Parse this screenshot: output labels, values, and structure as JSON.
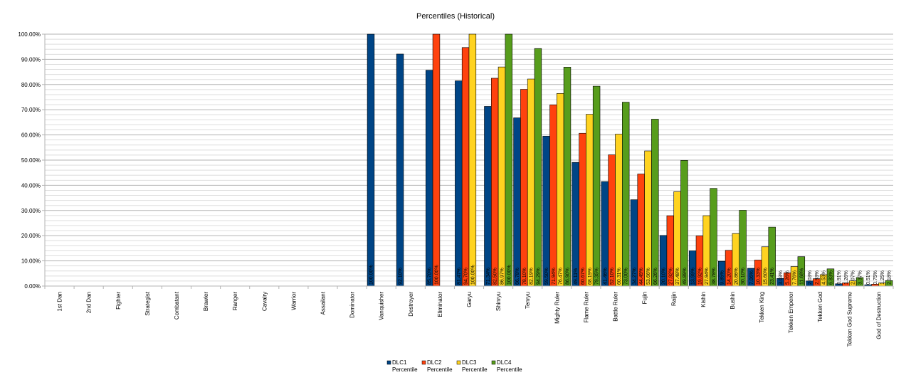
{
  "chart_data": {
    "type": "bar",
    "title": "Percentiles (Historical)",
    "xlabel": "",
    "ylabel": "",
    "ylim": [
      0,
      100
    ],
    "y_ticks": [
      "0.00%",
      "10.00%",
      "20.00%",
      "30.00%",
      "40.00%",
      "50.00%",
      "60.00%",
      "70.00%",
      "80.00%",
      "90.00%",
      "100.00%"
    ],
    "grid": true,
    "legend_position": "bottom",
    "categories": [
      "1st Dan",
      "2nd Dan",
      "Fighter",
      "Strategist",
      "Combatant",
      "Brawler",
      "Ranger",
      "Cavalry",
      "Warrior",
      "Assailant",
      "Dominator",
      "Vanquisher",
      "Destroyer",
      "Eliminator",
      "Garyu",
      "Shinryu",
      "Tenryu",
      "Mighty Ruler",
      "Flame Ruler",
      "Battle Ruler",
      "Fujin",
      "Raijin",
      "Kishin",
      "Bushin",
      "Tekken King",
      "Tekken Emperor",
      "Tekken God",
      "Tekken God Supreme",
      "God of Destruction"
    ],
    "series": [
      {
        "name": "DLC1 Percentile",
        "color": "#004586",
        "values": [
          null,
          null,
          null,
          null,
          null,
          null,
          null,
          null,
          null,
          null,
          null,
          100.0,
          92.1,
          85.7,
          81.47,
          71.34,
          66.78,
          59.5,
          49.11,
          41.46,
          34.27,
          20.1,
          13.99,
          9.85,
          7.06,
          3.03,
          2.03,
          0.91,
          0.51
        ],
        "labels": [
          null,
          null,
          null,
          null,
          null,
          null,
          null,
          null,
          null,
          null,
          null,
          "100.00%",
          "92.10%",
          "85.70%",
          "81.47%",
          "71.34%",
          "66.78%",
          "59.50%",
          "49.11%",
          "41.46%",
          "34.27%",
          "20.10%",
          "13.99%",
          "9.85%",
          "7.06%",
          "3.03%",
          "2.03%",
          "0.91%",
          "0.51%"
        ]
      },
      {
        "name": "DLC2 Percentile",
        "color": "#ff420e",
        "values": [
          null,
          null,
          null,
          null,
          null,
          null,
          null,
          null,
          null,
          null,
          null,
          null,
          null,
          100.0,
          94.7,
          82.5,
          78.1,
          71.94,
          60.67,
          52.1,
          44.49,
          27.92,
          19.92,
          14.2,
          10.33,
          5.26,
          2.93,
          1.26,
          0.75
        ],
        "labels": [
          null,
          null,
          null,
          null,
          null,
          null,
          null,
          null,
          null,
          null,
          null,
          null,
          null,
          "100.00%",
          "94.70%",
          "82.50%",
          "78.10%",
          "71.94%",
          "60.67%",
          "52.10%",
          "44.49%",
          "27.92%",
          "19.92%",
          "14.20%",
          "10.33%",
          "5.26%",
          "2.93%",
          "1.26%",
          "0.75%"
        ]
      },
      {
        "name": "DLC3 Percentile",
        "color": "#ffd320",
        "values": [
          null,
          null,
          null,
          null,
          null,
          null,
          null,
          null,
          null,
          null,
          null,
          null,
          null,
          null,
          100.0,
          86.97,
          82.19,
          76.47,
          68.19,
          60.31,
          53.66,
          37.48,
          27.94,
          20.86,
          15.6,
          7.76,
          4.53,
          2.07,
          1.25
        ],
        "labels": [
          null,
          null,
          null,
          null,
          null,
          null,
          null,
          null,
          null,
          null,
          null,
          null,
          null,
          null,
          "100.00%",
          "86.97%",
          "82.19%",
          "76.47%",
          "68.19%",
          "60.31%",
          "53.66%",
          "37.48%",
          "27.94%",
          "20.86%",
          "15.60%",
          "7.76%",
          "4.53%",
          "2.07%",
          "1.25%"
        ]
      },
      {
        "name": "DLC4 Percentile",
        "color": "#579d1c",
        "values": [
          null,
          null,
          null,
          null,
          null,
          null,
          null,
          null,
          null,
          null,
          null,
          null,
          null,
          null,
          null,
          100.0,
          94.29,
          86.9,
          79.35,
          73.0,
          66.26,
          49.89,
          38.78,
          30.1,
          23.41,
          11.68,
          6.83,
          3.37,
          2.18
        ],
        "labels": [
          null,
          null,
          null,
          null,
          null,
          null,
          null,
          null,
          null,
          null,
          null,
          null,
          null,
          null,
          null,
          "100.00%",
          "94.29%",
          "86.90%",
          "79.35%",
          "73.00%",
          "66.26%",
          "49.89%",
          "38.78%",
          "30.10%",
          "23.41%",
          "11.68%",
          "6.83%",
          "3.37%",
          "2.18%"
        ]
      }
    ],
    "legend": [
      {
        "line1": "DLC1",
        "line2": "Percentile"
      },
      {
        "line1": "DLC2",
        "line2": "Percentile"
      },
      {
        "line1": "DLC3",
        "line2": "Percentile"
      },
      {
        "line1": "DLC4",
        "line2": "Percentile"
      }
    ]
  }
}
